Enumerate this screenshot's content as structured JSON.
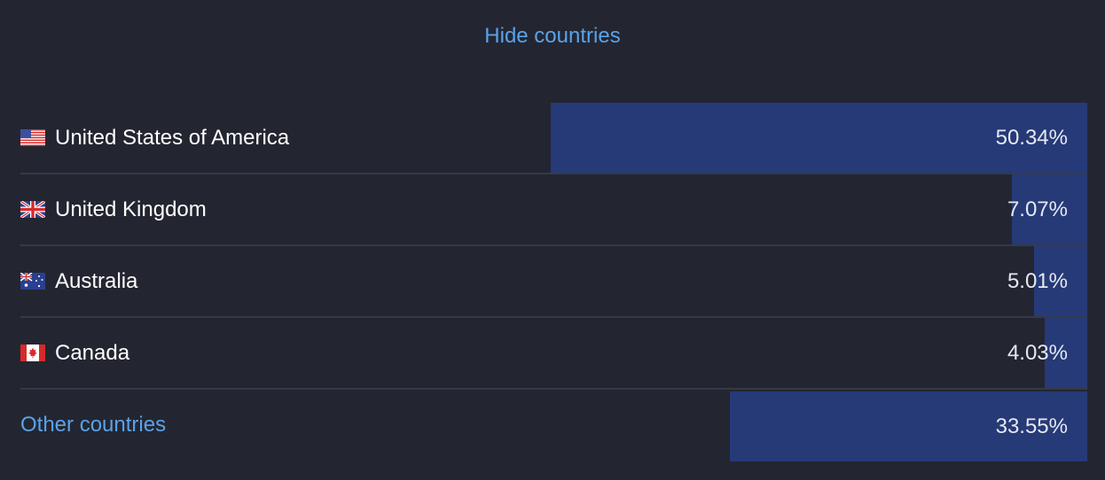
{
  "header": {
    "hide_label": "Hide countries"
  },
  "countries": [
    {
      "name": "United States of America",
      "percent": "50.34%",
      "share": 50.34,
      "flag": "us-flag-icon"
    },
    {
      "name": "United Kingdom",
      "percent": "7.07%",
      "share": 7.07,
      "flag": "uk-flag-icon"
    },
    {
      "name": "Australia",
      "percent": "5.01%",
      "share": 5.01,
      "flag": "australia-flag-icon"
    },
    {
      "name": "Canada",
      "percent": "4.03%",
      "share": 4.03,
      "flag": "canada-flag-icon"
    }
  ],
  "other": {
    "label": "Other countries",
    "percent": "33.55%",
    "share": 33.55
  },
  "colors": {
    "background": "#232631",
    "bar": "#263a78",
    "link": "#5aa2ea",
    "divider": "#363a47"
  }
}
